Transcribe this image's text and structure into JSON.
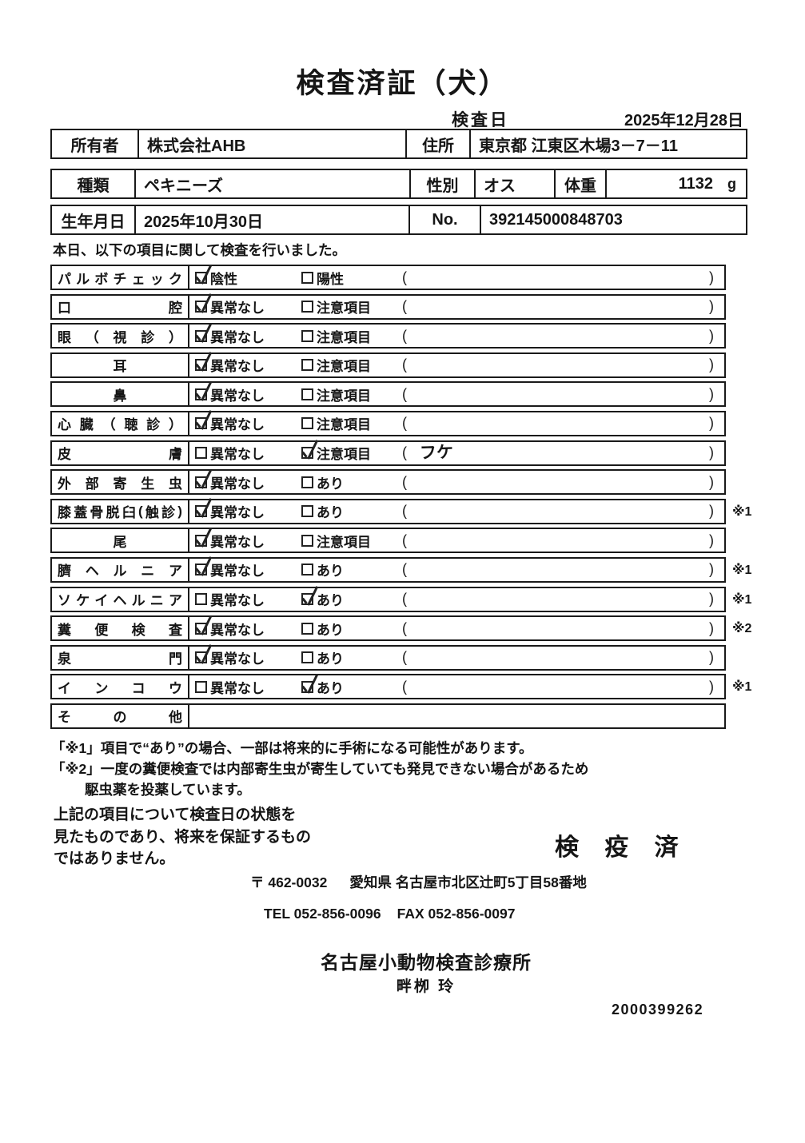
{
  "title": "検査済証（犬）",
  "inspection_date": {
    "label": "検査日",
    "value": "2025年12月28日"
  },
  "owner_table": {
    "owner_label": "所有者",
    "owner_value": "株式会社AHB",
    "address_label": "住所",
    "address_value": "東京都 江東区木場3－7－11"
  },
  "pet_table": {
    "species_label": "種類",
    "species_value": "ペキニーズ",
    "sex_label": "性別",
    "sex_value": "オス",
    "weight_label": "体重",
    "weight_value": "1132",
    "weight_unit": "g",
    "birth_label": "生年月日",
    "birth_value": "2025年10月30日",
    "no_label": "No.",
    "no_value": "392145000848703"
  },
  "intro": "本日、以下の項目に関して検査を行いました。",
  "checklist": {
    "paren_open": "(",
    "paren_close": ")",
    "rows": [
      {
        "label": "パルボチェック",
        "opt1": "陰性",
        "opt2": "陽性",
        "checked": "opt1",
        "note": "",
        "mark": ""
      },
      {
        "label": "口腔",
        "opt1": "異常なし",
        "opt2": "注意項目",
        "checked": "opt1",
        "note": "",
        "mark": ""
      },
      {
        "label": "眼（視診）",
        "opt1": "異常なし",
        "opt2": "注意項目",
        "checked": "opt1",
        "note": "",
        "mark": ""
      },
      {
        "label": "耳",
        "opt1": "異常なし",
        "opt2": "注意項目",
        "checked": "opt1",
        "note": "",
        "mark": ""
      },
      {
        "label": "鼻",
        "opt1": "異常なし",
        "opt2": "注意項目",
        "checked": "opt1",
        "note": "",
        "mark": ""
      },
      {
        "label": "心臓（聴診）",
        "opt1": "異常なし",
        "opt2": "注意項目",
        "checked": "opt1",
        "note": "",
        "mark": ""
      },
      {
        "label": "皮膚",
        "opt1": "異常なし",
        "opt2": "注意項目",
        "checked": "opt2",
        "note": "フケ",
        "mark": ""
      },
      {
        "label": "外部寄生虫",
        "opt1": "異常なし",
        "opt2": "あり",
        "checked": "opt1",
        "note": "",
        "mark": ""
      },
      {
        "label": "膝蓋骨脱臼(触診)",
        "opt1": "異常なし",
        "opt2": "あり",
        "checked": "opt1",
        "note": "",
        "mark": "※1"
      },
      {
        "label": "尾",
        "opt1": "異常なし",
        "opt2": "注意項目",
        "checked": "opt1",
        "note": "",
        "mark": ""
      },
      {
        "label": "臍ヘルニア",
        "opt1": "異常なし",
        "opt2": "あり",
        "checked": "opt1",
        "note": "",
        "mark": "※1"
      },
      {
        "label": "ソケイヘルニア",
        "opt1": "異常なし",
        "opt2": "あり",
        "checked": "opt2",
        "note": "",
        "mark": "※1"
      },
      {
        "label": "糞便検査",
        "opt1": "異常なし",
        "opt2": "あり",
        "checked": "opt1",
        "note": "",
        "mark": "※2"
      },
      {
        "label": "泉門",
        "opt1": "異常なし",
        "opt2": "あり",
        "checked": "opt1",
        "note": "",
        "mark": ""
      },
      {
        "label": "インコウ",
        "opt1": "異常なし",
        "opt2": "あり",
        "checked": "opt2",
        "note": "",
        "mark": "※1"
      },
      {
        "label": "その他",
        "opt1": null,
        "opt2": null,
        "checked": null,
        "note": null,
        "mark": ""
      }
    ]
  },
  "notes": {
    "line1": "「※1」項目で“あり”の場合、一部は将来的に手術になる可能性があります。",
    "line2": "「※2」一度の糞便検査では内部寄生虫が寄生していても発見できない場合があるため",
    "line3": "駆虫薬を投薬しています。"
  },
  "disclaimer": {
    "line1": "上記の項目について検査日の状態を",
    "line2": "見たものであり、将来を保証するもの",
    "line3": "ではありません。"
  },
  "stamp": "検 疫 済",
  "clinic": {
    "postal": "〒 462-0032",
    "address": "愛知県 名古屋市北区辻町5丁目58番地",
    "tel": "TEL 052-856-0096",
    "fax": "FAX 052-856-0097",
    "name": "名古屋小動物検査診療所",
    "vet": "畔栁 玲"
  },
  "doc_number": "2000399262"
}
